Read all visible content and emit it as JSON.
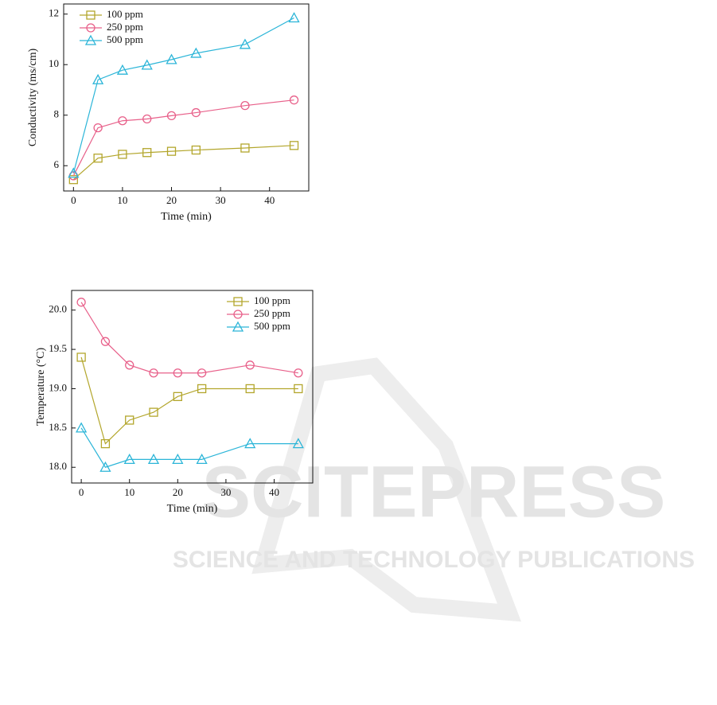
{
  "chart_data": [
    {
      "type": "line",
      "xlabel": "Time (min)",
      "ylabel": "Conductivity (ms/cm)",
      "x": [
        0,
        5,
        10,
        15,
        20,
        25,
        35,
        45
      ],
      "series": [
        {
          "name": "100 ppm",
          "color": "#b3a62c",
          "marker": "square",
          "values": [
            5.45,
            6.3,
            6.45,
            6.52,
            6.57,
            6.62,
            6.7,
            6.8
          ]
        },
        {
          "name": "250 ppm",
          "color": "#e8608a",
          "marker": "circle",
          "values": [
            5.6,
            7.5,
            7.78,
            7.85,
            7.98,
            8.1,
            8.38,
            8.6
          ]
        },
        {
          "name": "500 ppm",
          "color": "#2bb5d8",
          "marker": "triangle",
          "values": [
            5.7,
            9.4,
            9.78,
            9.98,
            10.2,
            10.45,
            10.8,
            11.85
          ]
        }
      ],
      "xlim": [
        -2,
        48
      ],
      "xticks": [
        0,
        10,
        20,
        30,
        40
      ],
      "ylim": [
        5,
        12.4
      ],
      "yticks": [
        6,
        8,
        10,
        12
      ],
      "legend": "upper left"
    },
    {
      "type": "line",
      "xlabel": "Time (min)",
      "ylabel": "Temperature (°C)",
      "x": [
        0,
        5,
        10,
        15,
        20,
        25,
        35,
        45
      ],
      "series": [
        {
          "name": "100 ppm",
          "color": "#b3a62c",
          "marker": "square",
          "values": [
            19.4,
            18.3,
            18.6,
            18.7,
            18.9,
            19.0,
            19.0,
            19.0
          ]
        },
        {
          "name": "250 ppm",
          "color": "#e8608a",
          "marker": "circle",
          "values": [
            20.1,
            19.6,
            19.3,
            19.2,
            19.2,
            19.2,
            19.3,
            19.2
          ]
        },
        {
          "name": "500 ppm",
          "color": "#2bb5d8",
          "marker": "triangle",
          "values": [
            18.5,
            18.0,
            18.1,
            18.1,
            18.1,
            18.1,
            18.3,
            18.3
          ]
        }
      ],
      "xlim": [
        -2,
        48
      ],
      "xticks": [
        0,
        10,
        20,
        30,
        40
      ],
      "ylim": [
        17.8,
        20.25
      ],
      "yticks": [
        {
          "value": 18,
          "label": "18.0"
        },
        18.5,
        {
          "value": 19,
          "label": "19.0"
        },
        19.5,
        {
          "value": 20,
          "label": "20.0"
        }
      ],
      "legend": "upper right"
    }
  ],
  "watermark": {
    "title": "SCITEPRESS",
    "subtitle": "SCIENCE AND TECHNOLOGY PUBLICATIONS"
  }
}
